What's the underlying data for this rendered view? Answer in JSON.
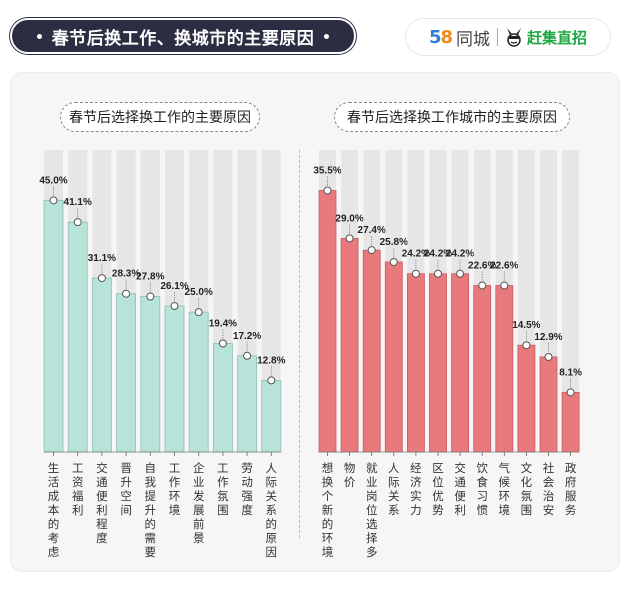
{
  "header": {
    "title": "春节后换工作、换城市的主要原因",
    "logo_58": "58",
    "logo_tongcheng": "同城",
    "logo_ganji": "赶集直招"
  },
  "colors": {
    "left_bar": "#b7e3d8",
    "right_bar": "#e87a7e",
    "track": "#e6e6e6",
    "title_bg": "#2b2d42"
  },
  "chart_data": [
    {
      "type": "bar",
      "title": "春节后选择换工作的主要原因",
      "categories": [
        "生活成本的考虑",
        "工资福利",
        "交通便利程度",
        "晋升空间",
        "自我提升的需要",
        "工作环境",
        "企业发展前景",
        "工作氛围",
        "劳动强度",
        "人际关系的原因"
      ],
      "values": [
        45.0,
        41.1,
        31.1,
        28.3,
        27.8,
        26.1,
        25.0,
        19.4,
        17.2,
        12.8
      ],
      "labels": [
        "45.0%",
        "41.1%",
        "31.1%",
        "28.3%",
        "27.8%",
        "26.1%",
        "25.0%",
        "19.4%",
        "17.2%",
        "12.8%"
      ],
      "unit": "%",
      "ylim": [
        0,
        54
      ],
      "grid": false
    },
    {
      "type": "bar",
      "title": "春节后选择换工作城市的主要原因",
      "categories": [
        "想换个新的环境",
        "物价",
        "就业岗位选择多",
        "人际关系",
        "经济实力",
        "区位优势",
        "交通便利",
        "饮食习惯",
        "气候环境",
        "文化氛围",
        "社会治安",
        "政府服务"
      ],
      "values": [
        35.5,
        29.0,
        27.4,
        25.8,
        24.2,
        24.2,
        24.2,
        22.6,
        22.6,
        14.5,
        12.9,
        8.1
      ],
      "labels": [
        "35.5%",
        "29.0%",
        "27.4%",
        "25.8%",
        "24.2%",
        "24.2%",
        "24.2%",
        "22.6%",
        "22.6%",
        "14.5%",
        "12.9%",
        "8.1%"
      ],
      "unit": "%",
      "ylim": [
        0,
        41
      ],
      "grid": false
    }
  ]
}
